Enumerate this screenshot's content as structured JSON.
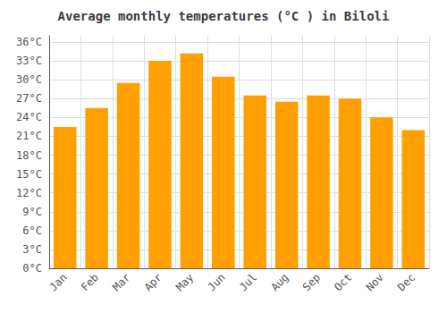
{
  "chart_data": {
    "type": "bar",
    "title": "Average monthly temperatures (°C ) in Biloli",
    "categories": [
      "Jan",
      "Feb",
      "Mar",
      "Apr",
      "May",
      "Jun",
      "Jul",
      "Aug",
      "Sep",
      "Oct",
      "Nov",
      "Dec"
    ],
    "values": [
      22.5,
      25.5,
      29.5,
      33.0,
      34.2,
      30.5,
      27.5,
      26.5,
      27.5,
      27.0,
      24.0,
      22.0
    ],
    "color": "#FFA000",
    "ylim": [
      0,
      37
    ],
    "yticks": [
      {
        "value": 0,
        "label": "0°C"
      },
      {
        "value": 3,
        "label": "3°C"
      },
      {
        "value": 6,
        "label": "6°C"
      },
      {
        "value": 9,
        "label": "9°C"
      },
      {
        "value": 12,
        "label": "12°C"
      },
      {
        "value": 15,
        "label": "15°C"
      },
      {
        "value": 18,
        "label": "18°C"
      },
      {
        "value": 21,
        "label": "21°C"
      },
      {
        "value": 24,
        "label": "24°C"
      },
      {
        "value": 27,
        "label": "27°C"
      },
      {
        "value": 30,
        "label": "30°C"
      },
      {
        "value": 33,
        "label": "33°C"
      },
      {
        "value": 36,
        "label": "36°C"
      }
    ],
    "grid": true
  }
}
